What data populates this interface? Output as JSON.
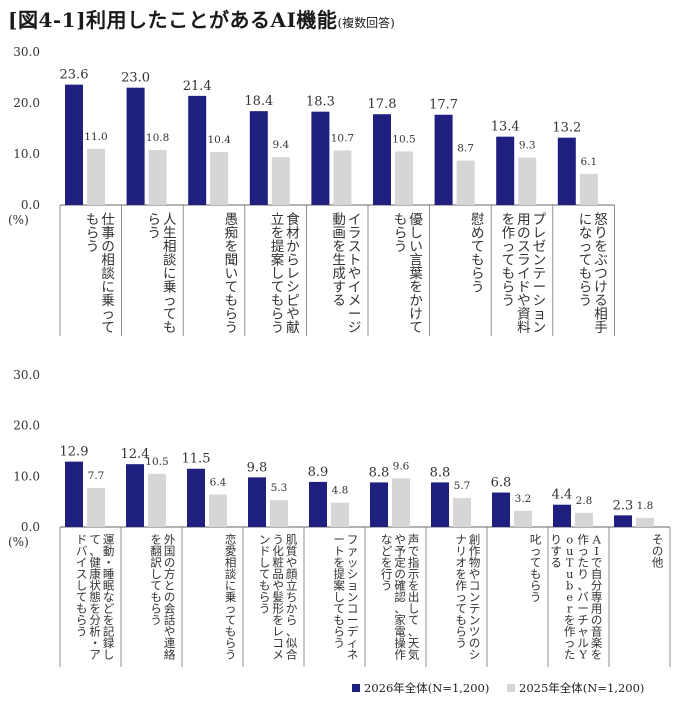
{
  "title": "[図4-1]利用したことがあるAI機能",
  "subtitle": "(複数回答)",
  "legend": {
    "s2026": "2026年全体(N=1,200)",
    "s2025": "2025年全体(N=1,200)"
  },
  "colors": {
    "s2026": "#1f1f80",
    "s2025": "#d6d6d6"
  },
  "chart_data": [
    {
      "type": "bar",
      "ylim": [
        0,
        30
      ],
      "yticks": [
        "30.0",
        "20.0",
        "10.0",
        "0.0"
      ],
      "yunit": "(%)",
      "categories": [
        "仕事の相談に乗ってもらう",
        "人生相談に乗ってもらう",
        "愚痴を聞いてもらう",
        "食材からレシピや献立を提案してもらう",
        "イラストやイメージ動画を生成する",
        "優しい言葉をかけてもらう",
        "慰めてもらう",
        "プレゼンテーション用のスライドや資料を作ってもらう",
        "怒りをぶつける相手になってもらう"
      ],
      "series": [
        {
          "name": "2026年全体(N=1,200)",
          "values": [
            23.6,
            23.0,
            21.4,
            18.4,
            18.3,
            17.8,
            17.7,
            13.4,
            13.2
          ]
        },
        {
          "name": "2025年全体(N=1,200)",
          "values": [
            11.0,
            10.8,
            10.4,
            9.4,
            10.7,
            10.5,
            8.7,
            9.3,
            6.1
          ]
        }
      ]
    },
    {
      "type": "bar",
      "ylim": [
        0,
        30
      ],
      "yticks": [
        "30.0",
        "20.0",
        "10.0",
        "0.0"
      ],
      "yunit": "(%)",
      "categories": [
        "運動・睡眠などを記録して、健康状態を分析・アドバイスしてもらう",
        "外国の方との会話や連絡を翻訳してもらう",
        "恋愛相談に乗ってもらう",
        "肌質や顔立ちから、似合う化粧品や髪形をレコメンドしてもらう",
        "ファッションコーディネートを提案してもらう",
        "声で指示を出して、天気や予定の確認、家電操作などを行う",
        "創作物やコンテンツのシナリオを作ってもらう",
        "叱ってもらう",
        "AIで自分専用の音楽を作ったり、バーチャルYouTuberを作ったりする",
        "その他"
      ],
      "series": [
        {
          "name": "2026年全体(N=1,200)",
          "values": [
            12.9,
            12.4,
            11.5,
            9.8,
            8.9,
            8.8,
            8.8,
            6.8,
            4.4,
            2.3
          ]
        },
        {
          "name": "2025年全体(N=1,200)",
          "values": [
            7.7,
            10.5,
            6.4,
            5.3,
            4.8,
            9.6,
            5.7,
            3.2,
            2.8,
            1.8
          ]
        }
      ]
    }
  ]
}
